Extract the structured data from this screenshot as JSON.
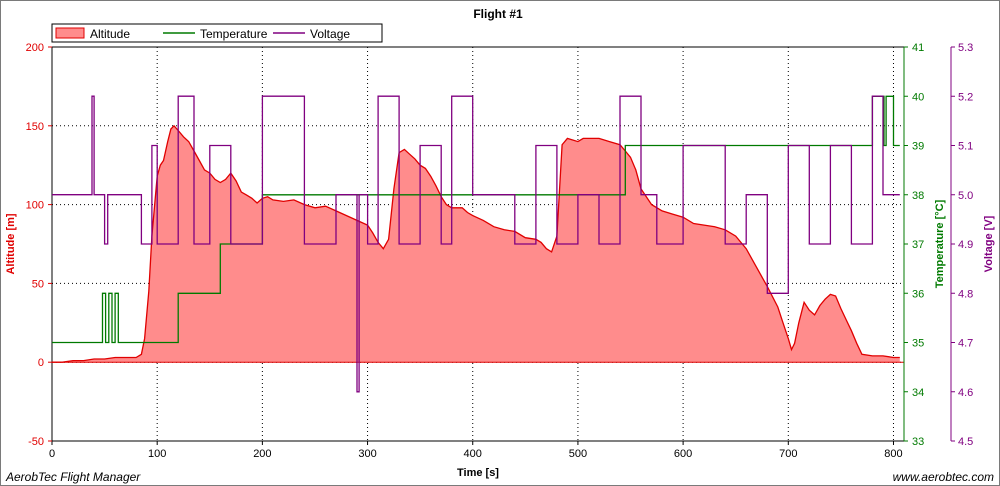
{
  "footer": {
    "left": "AerobTec Flight Manager",
    "right": "www.aerobtec.com"
  },
  "colors": {
    "altitude_line": "#e00000",
    "altitude_fill": "#ff8c8c",
    "temperature": "#007a00",
    "voltage": "#800080",
    "grid": "#000000"
  },
  "chart_data": {
    "type": "line",
    "title": "Flight #1",
    "xlabel": "Time [s]",
    "xlim": [
      0,
      810
    ],
    "x_ticks": [
      0,
      100,
      200,
      300,
      400,
      500,
      600,
      700,
      800
    ],
    "grid": true,
    "legend_position": "top-left",
    "axes": {
      "altitude": {
        "label": "Altitude [m]",
        "side": "left",
        "ylim": [
          -50,
          200
        ],
        "ticks": [
          -50,
          0,
          50,
          100,
          150,
          200
        ],
        "color": "#e00000"
      },
      "temperature": {
        "label": "Temperature [°C]",
        "side": "right",
        "ylim": [
          33,
          41
        ],
        "ticks": [
          33,
          34,
          35,
          36,
          37,
          38,
          39,
          40,
          41
        ],
        "color": "#007a00"
      },
      "voltage": {
        "label": "Voltage  [V]",
        "side": "right",
        "ylim": [
          4.5,
          5.3
        ],
        "ticks": [
          4.5,
          4.6,
          4.7,
          4.8,
          4.9,
          5.0,
          5.1,
          5.2,
          5.3
        ],
        "color": "#800080"
      }
    },
    "series": [
      {
        "name": "Altitude",
        "axis": "altitude",
        "style": "area",
        "x": [
          0,
          10,
          20,
          30,
          40,
          50,
          60,
          70,
          80,
          85,
          88,
          92,
          95,
          100,
          103,
          106,
          110,
          113,
          116,
          120,
          125,
          130,
          135,
          140,
          145,
          150,
          155,
          160,
          165,
          170,
          175,
          180,
          185,
          190,
          195,
          200,
          205,
          210,
          220,
          230,
          240,
          250,
          260,
          270,
          280,
          290,
          300,
          305,
          310,
          315,
          320,
          325,
          330,
          335,
          340,
          345,
          350,
          355,
          360,
          365,
          370,
          375,
          380,
          390,
          395,
          400,
          410,
          420,
          430,
          440,
          450,
          460,
          465,
          470,
          475,
          480,
          485,
          490,
          495,
          500,
          505,
          510,
          520,
          530,
          540,
          545,
          550,
          555,
          560,
          570,
          580,
          590,
          600,
          610,
          620,
          630,
          640,
          650,
          660,
          670,
          680,
          690,
          695,
          700,
          703,
          706,
          710,
          715,
          720,
          725,
          730,
          735,
          740,
          745,
          750,
          755,
          760,
          765,
          770,
          780,
          790,
          800,
          806
        ],
        "values": [
          0,
          0,
          1,
          1,
          2,
          2,
          3,
          3,
          3,
          5,
          15,
          45,
          80,
          118,
          125,
          128,
          140,
          148,
          150,
          147,
          143,
          140,
          134,
          128,
          122,
          120,
          116,
          114,
          116,
          120,
          115,
          108,
          106,
          104,
          101,
          104,
          105,
          103,
          102,
          103,
          100,
          98,
          99,
          96,
          93,
          90,
          87,
          82,
          76,
          72,
          78,
          110,
          133,
          135,
          132,
          129,
          125,
          123,
          118,
          112,
          105,
          100,
          98,
          98,
          95,
          93,
          90,
          86,
          84,
          83,
          79,
          78,
          76,
          72,
          70,
          80,
          138,
          142,
          141,
          140,
          142,
          142,
          142,
          140,
          138,
          134,
          130,
          122,
          110,
          100,
          96,
          94,
          92,
          88,
          87,
          86,
          84,
          80,
          72,
          60,
          48,
          35,
          25,
          15,
          8,
          12,
          25,
          38,
          33,
          30,
          36,
          40,
          43,
          42,
          34,
          27,
          20,
          12,
          5,
          4,
          4,
          3,
          3
        ]
      },
      {
        "name": "Temperature",
        "axis": "temperature",
        "style": "step",
        "x": [
          0,
          48,
          48,
          51,
          51,
          54,
          54,
          57,
          57,
          60,
          60,
          63,
          63,
          120,
          120,
          160,
          160,
          200,
          200,
          545,
          545,
          780,
          780,
          791,
          791,
          793,
          793,
          800,
          800,
          806
        ],
        "values": [
          35,
          35,
          36,
          36,
          35,
          35,
          36,
          36,
          35,
          35,
          36,
          36,
          35,
          35,
          36,
          36,
          37,
          37,
          38,
          38,
          39,
          39,
          40,
          40,
          39,
          39,
          40,
          40,
          39,
          39
        ]
      },
      {
        "name": "Voltage",
        "axis": "voltage",
        "style": "step",
        "x": [
          0,
          38,
          38,
          40,
          40,
          50,
          50,
          53,
          53,
          85,
          85,
          95,
          95,
          100,
          100,
          120,
          120,
          135,
          135,
          150,
          150,
          170,
          170,
          200,
          200,
          240,
          240,
          270,
          270,
          290,
          290,
          292,
          292,
          300,
          300,
          310,
          310,
          330,
          330,
          350,
          350,
          370,
          370,
          380,
          380,
          400,
          400,
          440,
          440,
          460,
          460,
          480,
          480,
          500,
          500,
          520,
          520,
          540,
          540,
          560,
          560,
          575,
          575,
          600,
          600,
          640,
          640,
          660,
          660,
          680,
          680,
          700,
          700,
          720,
          720,
          740,
          740,
          760,
          760,
          780,
          780,
          790,
          790,
          806
        ],
        "values": [
          5.0,
          5.0,
          5.2,
          5.2,
          5.0,
          5.0,
          4.9,
          4.9,
          5.0,
          5.0,
          4.9,
          4.9,
          5.1,
          5.1,
          4.9,
          4.9,
          5.2,
          5.2,
          4.9,
          4.9,
          5.1,
          5.1,
          4.9,
          4.9,
          5.2,
          5.2,
          4.9,
          4.9,
          5.0,
          5.0,
          4.6,
          4.6,
          5.0,
          5.0,
          4.9,
          4.9,
          5.2,
          5.2,
          4.9,
          4.9,
          5.1,
          5.1,
          4.9,
          4.9,
          5.2,
          5.2,
          5.0,
          5.0,
          4.9,
          4.9,
          5.1,
          5.1,
          4.9,
          4.9,
          5.0,
          5.0,
          4.9,
          4.9,
          5.2,
          5.2,
          5.0,
          5.0,
          4.9,
          4.9,
          5.1,
          5.1,
          4.9,
          4.9,
          5.0,
          5.0,
          4.8,
          4.8,
          5.1,
          5.1,
          4.9,
          4.9,
          5.1,
          5.1,
          4.9,
          4.9,
          5.2,
          5.2,
          5.0,
          5.0
        ]
      }
    ]
  }
}
